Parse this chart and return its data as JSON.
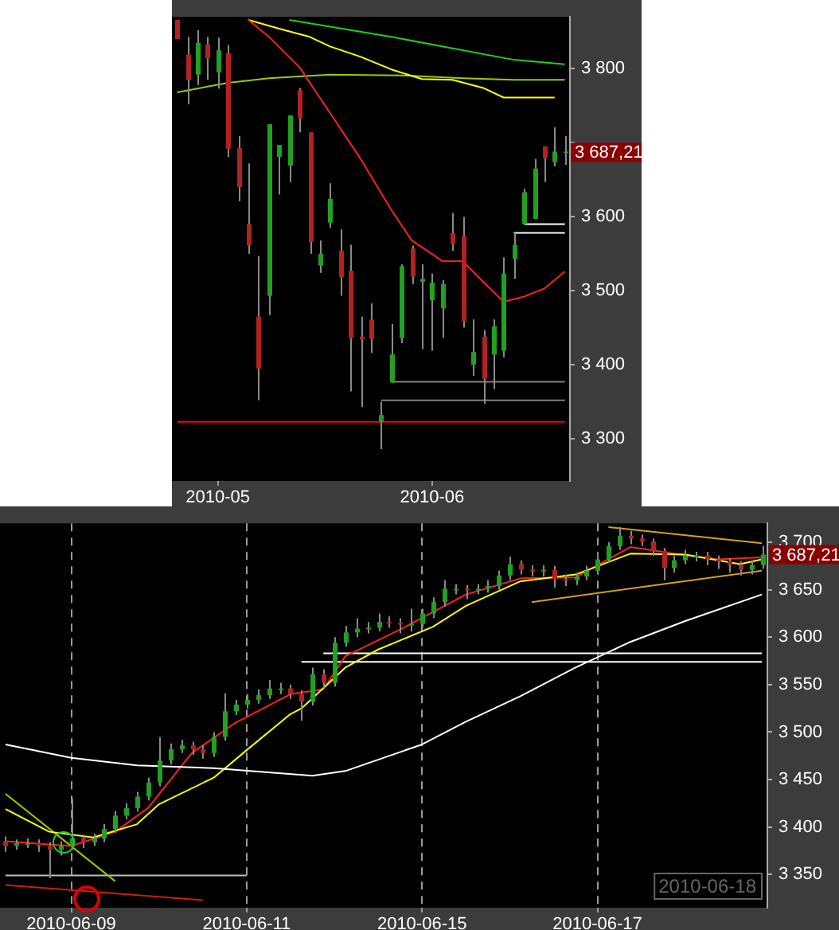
{
  "chart_data": [
    {
      "type": "candlestick",
      "categories": [
        null,
        null,
        null,
        null,
        "2010-05",
        null,
        null,
        null,
        null,
        null,
        null,
        null,
        null,
        null,
        null,
        null,
        null,
        null,
        null,
        null,
        null,
        null,
        null,
        null,
        null,
        "2010-06",
        null,
        null,
        null,
        null,
        null,
        null,
        null,
        null,
        null,
        null,
        null,
        null,
        null
      ],
      "ohlc": [
        [
          3866,
          3866,
          3840,
          3840
        ],
        [
          3819,
          3843,
          3752,
          3785
        ],
        [
          3792,
          3852,
          3778,
          3835
        ],
        [
          3833,
          3843,
          3785,
          3814
        ],
        [
          3795,
          3842,
          3773,
          3825
        ],
        [
          3821,
          3832,
          3681,
          3692
        ],
        [
          3693,
          3709,
          3621,
          3640
        ],
        [
          3590,
          3672,
          3550,
          3561
        ],
        [
          3465,
          3547,
          3352,
          3395
        ],
        [
          3493,
          3725,
          3467,
          3725
        ],
        [
          3681,
          3697,
          3630,
          3697
        ],
        [
          3669,
          3737,
          3647,
          3737
        ],
        [
          3771,
          3774,
          3714,
          3733
        ],
        [
          3714,
          3714,
          3550,
          3566
        ],
        [
          3534,
          3568,
          3524,
          3550
        ],
        [
          3592,
          3645,
          3585,
          3624
        ],
        [
          3554,
          3583,
          3493,
          3518
        ],
        [
          3527,
          3562,
          3364,
          3436
        ],
        [
          3438,
          3465,
          3343,
          3434
        ],
        [
          3461,
          3483,
          3416,
          3435
        ],
        [
          3323,
          3350,
          3286,
          3332
        ],
        [
          3376,
          3455,
          3376,
          3414
        ],
        [
          3436,
          3536,
          3429,
          3533
        ],
        [
          3557,
          3561,
          3509,
          3519
        ],
        [
          3512,
          3536,
          3421,
          3516
        ],
        [
          3487,
          3523,
          3419,
          3511
        ],
        [
          3476,
          3514,
          3436,
          3509
        ],
        [
          3578,
          3605,
          3554,
          3563
        ],
        [
          3574,
          3600,
          3450,
          3459
        ],
        [
          3400,
          3461,
          3385,
          3417
        ],
        [
          3438,
          3447,
          3347,
          3381
        ],
        [
          3414,
          3461,
          3367,
          3452
        ],
        [
          3419,
          3545,
          3410,
          3523
        ],
        [
          3543,
          3578,
          3516,
          3562
        ],
        [
          3590,
          3638,
          3590,
          3633
        ],
        [
          3597,
          3678,
          3597,
          3665
        ],
        [
          3695,
          3695,
          3647,
          3679
        ],
        [
          3674,
          3721,
          3668,
          3688
        ],
        [
          3688,
          3709,
          3670,
          3687
        ]
      ],
      "colors": [
        "#b22222",
        "#b22222",
        "#22a022",
        "#b22222",
        "#22a022",
        "#b22222",
        "#b22222",
        "#b22222",
        "#b22222",
        "#22a022",
        "#22a022",
        "#22a022",
        "#b22222",
        "#b22222",
        "#22a022",
        "#22a022",
        "#b22222",
        "#b22222",
        "#b22222",
        "#b22222",
        "#22a022",
        "#22a022",
        "#22a022",
        "#b22222",
        "#22a022",
        "#22a022",
        "#22a022",
        "#b22222",
        "#b22222",
        "#22a022",
        "#b22222",
        "#22a022",
        "#22a022",
        "#22a022",
        "#22a022",
        "#22a022",
        "#b22222",
        "#22a022",
        "#22a022"
      ],
      "series": [
        {
          "type": "line",
          "color": "#ff2020",
          "values": [
            null,
            null,
            null,
            null,
            null,
            null,
            null,
            3866,
            null,
            3843,
            null,
            null,
            3802,
            null,
            null,
            3740,
            null,
            null,
            3678,
            null,
            null,
            3609,
            null,
            3568,
            null,
            null,
            3540,
            null,
            3540,
            null,
            3512,
            null,
            3485,
            null,
            3492,
            null,
            3503,
            null,
            3526
          ]
        },
        {
          "type": "line",
          "color": "#ffff00",
          "values": [
            null,
            null,
            null,
            null,
            null,
            null,
            null,
            3866,
            null,
            null,
            3854,
            null,
            null,
            3843,
            null,
            3830,
            null,
            null,
            3816,
            null,
            null,
            3799,
            null,
            null,
            3786,
            null,
            null,
            3785,
            null,
            null,
            3774,
            null,
            3761,
            null,
            null,
            null,
            null,
            3761,
            null
          ]
        },
        {
          "type": "line",
          "color": "#99cc00",
          "values": [
            3768,
            null,
            null,
            null,
            null,
            3781,
            null,
            null,
            null,
            3787,
            null,
            null,
            null,
            null,
            null,
            3792,
            null,
            null,
            null,
            null,
            null,
            null,
            3791,
            null,
            null,
            null,
            null,
            null,
            3787,
            null,
            null,
            null,
            null,
            3785,
            null,
            null,
            null,
            null,
            3785
          ]
        },
        {
          "type": "line",
          "color": "#22cc22",
          "values": [
            null,
            null,
            null,
            null,
            null,
            null,
            null,
            null,
            null,
            null,
            null,
            3866,
            null,
            null,
            null,
            null,
            null,
            null,
            null,
            null,
            null,
            3843,
            null,
            null,
            null,
            null,
            null,
            null,
            null,
            null,
            null,
            null,
            null,
            3812,
            null,
            null,
            null,
            null,
            3806
          ]
        },
        {
          "type": "line",
          "color": "#ff0000",
          "values": [
            3323,
            null,
            null,
            null,
            null,
            null,
            null,
            null,
            null,
            null,
            null,
            null,
            null,
            null,
            null,
            null,
            null,
            null,
            null,
            null,
            null,
            null,
            null,
            null,
            null,
            null,
            null,
            null,
            null,
            null,
            null,
            null,
            null,
            null,
            null,
            null,
            null,
            null,
            3323
          ]
        },
        {
          "type": "line",
          "color": "#808080",
          "values": [
            null,
            null,
            null,
            null,
            null,
            null,
            null,
            null,
            null,
            null,
            null,
            null,
            null,
            null,
            null,
            null,
            null,
            null,
            null,
            null,
            null,
            3377,
            null,
            null,
            null,
            null,
            null,
            null,
            null,
            null,
            null,
            null,
            null,
            null,
            null,
            null,
            null,
            null,
            3377
          ]
        },
        {
          "type": "line",
          "color": "#808080",
          "values": [
            null,
            null,
            null,
            null,
            null,
            null,
            null,
            null,
            null,
            null,
            null,
            null,
            null,
            null,
            null,
            null,
            null,
            null,
            null,
            null,
            3352,
            null,
            null,
            null,
            null,
            null,
            null,
            null,
            null,
            null,
            null,
            null,
            null,
            null,
            null,
            null,
            null,
            null,
            3352
          ]
        },
        {
          "type": "line",
          "color": "#ffffff",
          "values": [
            null,
            null,
            null,
            null,
            null,
            null,
            null,
            null,
            null,
            null,
            null,
            null,
            null,
            null,
            null,
            null,
            null,
            null,
            null,
            null,
            null,
            null,
            null,
            null,
            null,
            null,
            null,
            null,
            null,
            null,
            null,
            null,
            null,
            null,
            3590,
            null,
            null,
            null,
            3590
          ]
        },
        {
          "type": "line",
          "color": "#ffffff",
          "values": [
            null,
            null,
            null,
            null,
            null,
            null,
            null,
            null,
            null,
            null,
            null,
            null,
            null,
            null,
            null,
            null,
            null,
            null,
            null,
            null,
            null,
            null,
            null,
            null,
            null,
            null,
            null,
            null,
            null,
            null,
            null,
            null,
            null,
            3578,
            null,
            null,
            null,
            null,
            3578
          ]
        }
      ],
      "ylim": [
        3243,
        3870
      ],
      "yticks": [
        {
          "value": 3300,
          "label": "3 300"
        },
        {
          "value": 3400,
          "label": "3 400"
        },
        {
          "value": 3500,
          "label": "3 500"
        },
        {
          "value": 3600,
          "label": "3 600"
        },
        {
          "value": 3700,
          "label": null
        },
        {
          "value": 3800,
          "label": "3 800"
        }
      ],
      "annotations": [
        "3 687,21"
      ]
    },
    {
      "type": "candlestick",
      "categories": [
        null,
        null,
        null,
        null,
        null,
        null,
        "2010-06-09",
        null,
        null,
        null,
        null,
        null,
        null,
        null,
        null,
        null,
        null,
        null,
        null,
        null,
        null,
        null,
        "2010-06-11",
        null,
        null,
        null,
        null,
        null,
        null,
        null,
        null,
        null,
        null,
        null,
        null,
        null,
        null,
        null,
        "2010-06-15",
        null,
        null,
        null,
        null,
        null,
        null,
        null,
        null,
        null,
        null,
        null,
        null,
        null,
        null,
        null,
        "2010-06-17",
        null,
        null,
        null,
        null,
        null,
        null,
        null,
        null,
        null,
        null,
        null,
        null,
        null,
        null,
        null
      ],
      "ohlc": [
        [
          3385,
          3390,
          3374,
          3380
        ],
        [
          3380,
          3387,
          3376,
          3383
        ],
        [
          3383,
          3388,
          3378,
          3383
        ],
        [
          3383,
          3387,
          3374,
          3380
        ],
        [
          3380,
          3384,
          3346,
          3376
        ],
        [
          3376,
          3385,
          3370,
          3380
        ],
        [
          3380,
          3430,
          3376,
          3388
        ],
        [
          3388,
          3392,
          3378,
          3384
        ],
        [
          3384,
          3393,
          3380,
          3388
        ],
        [
          3388,
          3403,
          3384,
          3398
        ],
        [
          3398,
          3417,
          3394,
          3412
        ],
        [
          3412,
          3425,
          3408,
          3420
        ],
        [
          3420,
          3437,
          3416,
          3432
        ],
        [
          3432,
          3452,
          3428,
          3447
        ],
        [
          3447,
          3495,
          3443,
          3470
        ],
        [
          3470,
          3488,
          3466,
          3482
        ],
        [
          3482,
          3492,
          3478,
          3486
        ],
        [
          3486,
          3490,
          3476,
          3482
        ],
        [
          3482,
          3486,
          3472,
          3478
        ],
        [
          3478,
          3500,
          3474,
          3495
        ],
        [
          3495,
          3541,
          3491,
          3522
        ],
        [
          3522,
          3534,
          3518,
          3529
        ],
        [
          3529,
          3540,
          3525,
          3534
        ],
        [
          3534,
          3545,
          3530,
          3539
        ],
        [
          3539,
          3555,
          3535,
          3546
        ],
        [
          3546,
          3552,
          3540,
          3546
        ],
        [
          3546,
          3550,
          3535,
          3540
        ],
        [
          3540,
          3544,
          3512,
          3532
        ],
        [
          3532,
          3568,
          3528,
          3561
        ],
        [
          3561,
          3566,
          3546,
          3552
        ],
        [
          3552,
          3600,
          3548,
          3594
        ],
        [
          3594,
          3612,
          3590,
          3605
        ],
        [
          3605,
          3620,
          3600,
          3609
        ],
        [
          3609,
          3616,
          3604,
          3610
        ],
        [
          3610,
          3625,
          3606,
          3616
        ],
        [
          3616,
          3622,
          3610,
          3615
        ],
        [
          3615,
          3620,
          3604,
          3614
        ],
        [
          3614,
          3630,
          3606,
          3614
        ],
        [
          3614,
          3630,
          3610,
          3625
        ],
        [
          3625,
          3642,
          3620,
          3637
        ],
        [
          3637,
          3660,
          3632,
          3651
        ],
        [
          3651,
          3656,
          3645,
          3651
        ],
        [
          3651,
          3655,
          3640,
          3650
        ],
        [
          3650,
          3656,
          3645,
          3651
        ],
        [
          3651,
          3660,
          3647,
          3654
        ],
        [
          3654,
          3670,
          3650,
          3665
        ],
        [
          3665,
          3685,
          3660,
          3677
        ],
        [
          3677,
          3681,
          3666,
          3671
        ],
        [
          3671,
          3676,
          3664,
          3670
        ],
        [
          3670,
          3676,
          3664,
          3671
        ],
        [
          3671,
          3675,
          3652,
          3661
        ],
        [
          3661,
          3666,
          3654,
          3660
        ],
        [
          3660,
          3668,
          3655,
          3664
        ],
        [
          3664,
          3675,
          3660,
          3670
        ],
        [
          3670,
          3688,
          3666,
          3682
        ],
        [
          3682,
          3700,
          3678,
          3696
        ],
        [
          3696,
          3716,
          3692,
          3707
        ],
        [
          3707,
          3712,
          3698,
          3704
        ],
        [
          3704,
          3708,
          3696,
          3701
        ],
        [
          3701,
          3704,
          3686,
          3691
        ],
        [
          3691,
          3694,
          3660,
          3673
        ],
        [
          3673,
          3686,
          3668,
          3681
        ],
        [
          3681,
          3692,
          3677,
          3686
        ],
        [
          3686,
          3690,
          3680,
          3686
        ],
        [
          3686,
          3690,
          3676,
          3682
        ],
        [
          3682,
          3686,
          3672,
          3680
        ],
        [
          3680,
          3683,
          3668,
          3676
        ],
        [
          3676,
          3680,
          3665,
          3671
        ],
        [
          3671,
          3681,
          3666,
          3676
        ],
        [
          3676,
          3696,
          3672,
          3687
        ]
      ],
      "colors": [
        "#b22222",
        "#22a022",
        "#22a022",
        "#b22222",
        "#b22222",
        "#22a022",
        "#22a022",
        "#b22222",
        "#22a022",
        "#22a022",
        "#22a022",
        "#22a022",
        "#22a022",
        "#22a022",
        "#22a022",
        "#22a022",
        "#22a022",
        "#b22222",
        "#b22222",
        "#22a022",
        "#22a022",
        "#22a022",
        "#22a022",
        "#22a022",
        "#22a022",
        "#22a022",
        "#b22222",
        "#b22222",
        "#22a022",
        "#b22222",
        "#22a022",
        "#22a022",
        "#22a022",
        "#22a022",
        "#22a022",
        "#b22222",
        "#b22222",
        "#22a022",
        "#22a022",
        "#22a022",
        "#22a022",
        "#22a022",
        "#b22222",
        "#22a022",
        "#22a022",
        "#22a022",
        "#22a022",
        "#b22222",
        "#b22222",
        "#22a022",
        "#b22222",
        "#b22222",
        "#22a022",
        "#22a022",
        "#22a022",
        "#22a022",
        "#22a022",
        "#b22222",
        "#b22222",
        "#b22222",
        "#b22222",
        "#22a022",
        "#22a022",
        "#22a022",
        "#b22222",
        "#b22222",
        "#b22222",
        "#b22222",
        "#22a022",
        "#22a022"
      ],
      "series": [
        {
          "type": "line",
          "color": "#ffffff",
          "values": [
            3487,
            null,
            null,
            null,
            null,
            null,
            3473,
            null,
            null,
            null,
            null,
            null,
            3465,
            null,
            null,
            null,
            null,
            null,
            null,
            3462,
            null,
            null,
            null,
            null,
            null,
            null,
            null,
            null,
            3454,
            null,
            null,
            3459,
            null,
            null,
            null,
            null,
            null,
            null,
            3487,
            null,
            null,
            null,
            3511,
            null,
            null,
            null,
            null,
            3538,
            null,
            null,
            null,
            null,
            3568,
            null,
            null,
            null,
            null,
            3595,
            null,
            null,
            null,
            null,
            3617,
            null,
            null,
            null,
            null,
            null,
            null,
            3645
          ]
        },
        {
          "type": "line",
          "color": "#ffff00",
          "values": [
            3419,
            null,
            null,
            null,
            3395,
            null,
            null,
            null,
            3389,
            null,
            null,
            null,
            3403,
            null,
            3424,
            null,
            null,
            null,
            null,
            3452,
            null,
            null,
            3481,
            null,
            null,
            null,
            3519,
            3525,
            null,
            null,
            null,
            3568,
            null,
            null,
            3587,
            null,
            null,
            null,
            null,
            3611,
            null,
            null,
            3633,
            null,
            null,
            null,
            null,
            3659,
            null,
            null,
            null,
            null,
            3666,
            null,
            null,
            null,
            null,
            3688,
            null,
            null,
            null,
            null,
            3687,
            null,
            null,
            null,
            null,
            3677,
            null,
            3682
          ]
        },
        {
          "type": "line",
          "color": "#ff2020",
          "values": [
            3385,
            null,
            null,
            null,
            null,
            null,
            3380,
            null,
            null,
            null,
            3395,
            null,
            null,
            3420,
            null,
            null,
            null,
            3478,
            null,
            null,
            null,
            3510,
            null,
            null,
            null,
            null,
            3540,
            null,
            null,
            3545,
            null,
            3580,
            null,
            null,
            null,
            null,
            3608,
            null,
            null,
            null,
            null,
            null,
            3645,
            null,
            null,
            null,
            null,
            3662,
            null,
            null,
            null,
            null,
            3663,
            null,
            null,
            null,
            null,
            3695,
            null,
            null,
            null,
            3688,
            null,
            null,
            null,
            3682,
            null,
            null,
            null,
            3684
          ]
        },
        {
          "type": "line",
          "color": "#99cc00",
          "values": [
            3435,
            null,
            null,
            null,
            null,
            null,
            null,
            null,
            null,
            null,
            3343,
            null,
            null,
            null,
            null,
            null,
            null,
            null,
            null,
            null,
            null,
            null,
            null,
            null,
            null,
            null,
            null,
            null,
            null,
            null,
            null,
            null,
            null,
            null,
            null,
            null,
            null,
            null,
            null,
            null,
            null,
            null,
            null,
            null,
            null,
            null,
            null,
            null,
            null,
            null,
            null,
            null,
            null,
            null,
            null,
            null,
            null,
            null,
            null,
            null,
            null,
            null,
            null,
            null,
            null,
            null,
            null,
            null,
            null,
            null
          ]
        },
        {
          "type": "line",
          "color": "#cc2200",
          "values": [
            3339,
            null,
            null,
            null,
            null,
            null,
            null,
            null,
            null,
            null,
            null,
            null,
            null,
            null,
            null,
            null,
            null,
            null,
            3323,
            null,
            null,
            null,
            null,
            null,
            null,
            null,
            null,
            null,
            null,
            null,
            null,
            null,
            null,
            null,
            null,
            null,
            null,
            null,
            null,
            null,
            null,
            null,
            null,
            null,
            null,
            null,
            null,
            null,
            null,
            null,
            null,
            null,
            null,
            null,
            null,
            null,
            null,
            null,
            null,
            null,
            null,
            null,
            null,
            null,
            null,
            null,
            null,
            null,
            null,
            null
          ]
        },
        {
          "type": "line",
          "color": "#d4a017",
          "values": [
            null,
            null,
            null,
            null,
            null,
            null,
            null,
            null,
            null,
            null,
            null,
            null,
            null,
            null,
            null,
            null,
            null,
            null,
            null,
            null,
            null,
            null,
            null,
            null,
            null,
            null,
            null,
            null,
            null,
            null,
            null,
            null,
            null,
            null,
            null,
            null,
            null,
            null,
            null,
            null,
            null,
            null,
            null,
            null,
            null,
            null,
            null,
            null,
            null,
            null,
            null,
            null,
            null,
            null,
            null,
            3716,
            null,
            null,
            null,
            null,
            null,
            null,
            null,
            null,
            null,
            null,
            null,
            null,
            null,
            3699
          ]
        },
        {
          "type": "line",
          "color": "#d4a017",
          "values": [
            null,
            null,
            null,
            null,
            null,
            null,
            null,
            null,
            null,
            null,
            null,
            null,
            null,
            null,
            null,
            null,
            null,
            null,
            null,
            null,
            null,
            null,
            null,
            null,
            null,
            null,
            null,
            null,
            null,
            null,
            null,
            null,
            null,
            null,
            null,
            null,
            null,
            null,
            null,
            null,
            null,
            null,
            null,
            null,
            null,
            null,
            null,
            null,
            3637,
            null,
            null,
            null,
            null,
            null,
            null,
            null,
            null,
            null,
            null,
            null,
            null,
            null,
            null,
            null,
            null,
            null,
            null,
            null,
            null,
            3670
          ]
        },
        {
          "type": "line",
          "color": "#ffffff",
          "values": [
            null,
            null,
            null,
            null,
            null,
            null,
            null,
            null,
            null,
            null,
            null,
            null,
            null,
            null,
            null,
            null,
            null,
            null,
            null,
            null,
            null,
            null,
            null,
            null,
            null,
            null,
            null,
            null,
            null,
            3583,
            null,
            null,
            null,
            null,
            null,
            null,
            null,
            null,
            null,
            null,
            null,
            null,
            null,
            null,
            null,
            null,
            null,
            null,
            null,
            null,
            null,
            null,
            null,
            null,
            null,
            null,
            null,
            null,
            null,
            null,
            null,
            null,
            null,
            null,
            null,
            null,
            null,
            null,
            null,
            3583
          ]
        },
        {
          "type": "line",
          "color": "#ffffff",
          "values": [
            null,
            null,
            null,
            null,
            null,
            null,
            null,
            null,
            null,
            null,
            null,
            null,
            null,
            null,
            null,
            null,
            null,
            null,
            null,
            null,
            null,
            null,
            null,
            null,
            null,
            null,
            null,
            3574,
            null,
            null,
            null,
            null,
            null,
            null,
            null,
            null,
            null,
            null,
            null,
            null,
            null,
            null,
            null,
            null,
            null,
            null,
            null,
            null,
            null,
            null,
            null,
            null,
            null,
            null,
            null,
            null,
            null,
            null,
            null,
            null,
            null,
            null,
            null,
            null,
            null,
            null,
            null,
            null,
            null,
            3574
          ]
        },
        {
          "type": "line",
          "color": "#c0c0c0",
          "values": [
            3349,
            null,
            null,
            null,
            null,
            null,
            null,
            null,
            null,
            null,
            null,
            null,
            null,
            null,
            null,
            null,
            null,
            null,
            null,
            null,
            null,
            null,
            3349,
            null,
            null,
            null,
            null,
            null,
            null,
            null,
            null,
            null,
            null,
            null,
            null,
            null,
            null,
            null,
            null,
            null,
            null,
            null,
            null,
            null,
            null,
            null,
            null,
            null,
            null,
            null,
            null,
            null,
            null,
            null,
            null,
            null,
            null,
            null,
            null,
            null,
            null,
            null,
            null,
            null,
            null,
            null,
            null,
            null,
            null,
            null
          ]
        }
      ],
      "ylim": [
        3315,
        3720
      ],
      "yticks": [
        {
          "value": 3350,
          "label": "3 350"
        },
        {
          "value": 3400,
          "label": "3 400"
        },
        {
          "value": 3450,
          "label": "3 450"
        },
        {
          "value": 3500,
          "label": "3 500"
        },
        {
          "value": 3550,
          "label": "3 550"
        },
        {
          "value": 3600,
          "label": "3 600"
        },
        {
          "value": 3650,
          "label": "3 650"
        },
        {
          "value": 3700,
          "label": "3 700"
        }
      ],
      "grid": "x",
      "annotations": [
        "3 687,21",
        "2010-06-18"
      ]
    }
  ]
}
